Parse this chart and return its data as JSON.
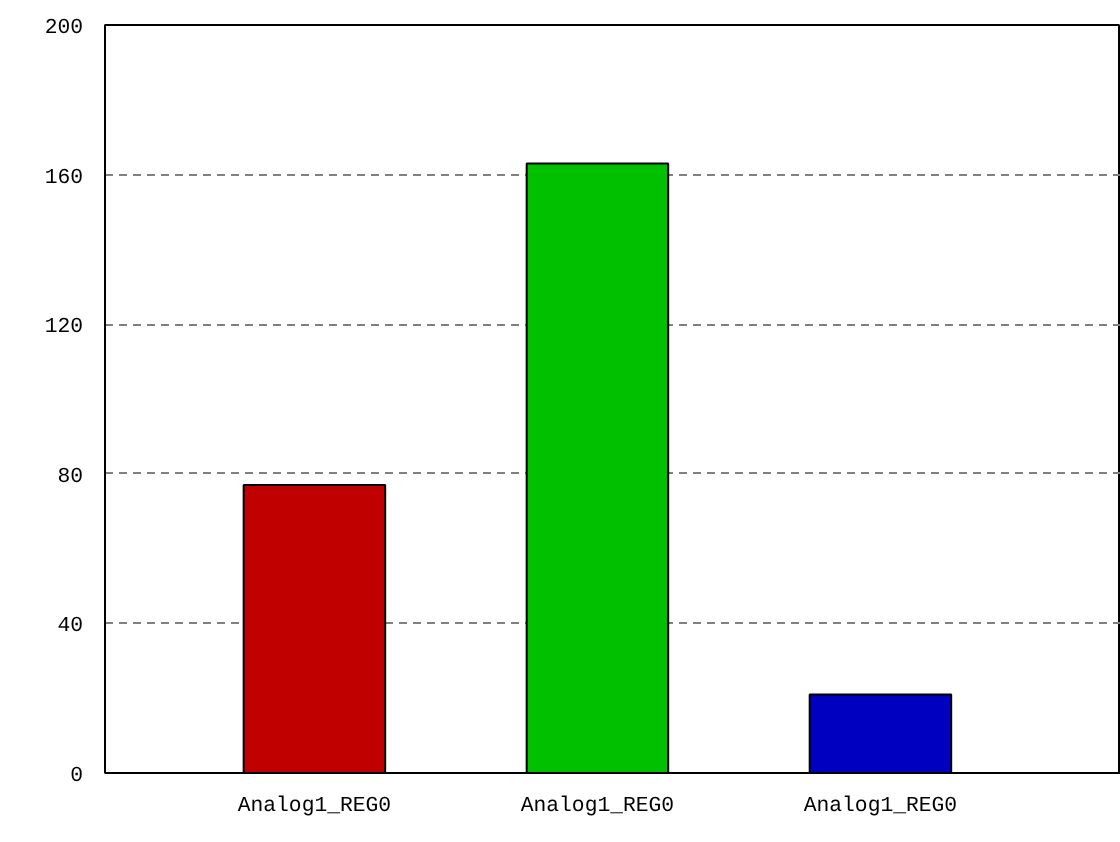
{
  "chart_data": {
    "type": "bar",
    "categories": [
      "Analog1_REG0",
      "Analog1_REG0",
      "Analog1_REG0"
    ],
    "values": [
      77,
      163,
      21
    ],
    "colors": [
      "#c00000",
      "#00c000",
      "#0000c0"
    ],
    "ylim": [
      0,
      200
    ],
    "yticks": [
      0,
      40,
      80,
      120,
      160,
      200
    ],
    "grid": "y"
  }
}
